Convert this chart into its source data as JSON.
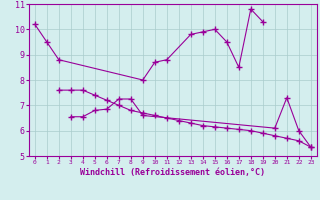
{
  "line1_x": [
    0,
    1,
    2,
    9,
    10,
    11,
    13,
    14,
    15,
    16,
    17,
    18,
    19
  ],
  "line1_y": [
    10.2,
    9.5,
    8.8,
    8.0,
    8.7,
    8.8,
    9.8,
    9.9,
    10.0,
    9.5,
    8.5,
    10.8,
    10.3
  ],
  "line2_x": [
    2,
    3,
    4,
    5,
    6,
    7,
    8,
    9,
    10,
    11,
    12,
    13,
    14,
    15,
    16,
    17,
    18,
    19,
    20,
    21,
    22,
    23
  ],
  "line2_y": [
    7.6,
    7.6,
    7.6,
    7.4,
    7.2,
    7.0,
    6.8,
    6.7,
    6.6,
    6.5,
    6.4,
    6.3,
    6.2,
    6.15,
    6.1,
    6.05,
    6.0,
    5.9,
    5.8,
    5.7,
    5.6,
    5.35
  ],
  "line3_x": [
    3,
    4,
    5,
    6,
    7,
    8,
    9,
    20,
    21,
    22,
    23
  ],
  "line3_y": [
    6.55,
    6.55,
    6.8,
    6.85,
    7.25,
    7.25,
    6.6,
    6.1,
    7.3,
    6.0,
    5.35
  ],
  "color": "#990099",
  "bg_color": "#d4eeee",
  "grid_color": "#aacccc",
  "xlim": [
    -0.5,
    23.5
  ],
  "ylim": [
    5,
    11
  ],
  "yticks": [
    5,
    6,
    7,
    8,
    9,
    10,
    11
  ],
  "xticks": [
    0,
    1,
    2,
    3,
    4,
    5,
    6,
    7,
    8,
    9,
    10,
    11,
    12,
    13,
    14,
    15,
    16,
    17,
    18,
    19,
    20,
    21,
    22,
    23
  ],
  "xlabel": "Windchill (Refroidissement éolien,°C)",
  "marker": "+",
  "markersize": 4,
  "linewidth": 0.8
}
